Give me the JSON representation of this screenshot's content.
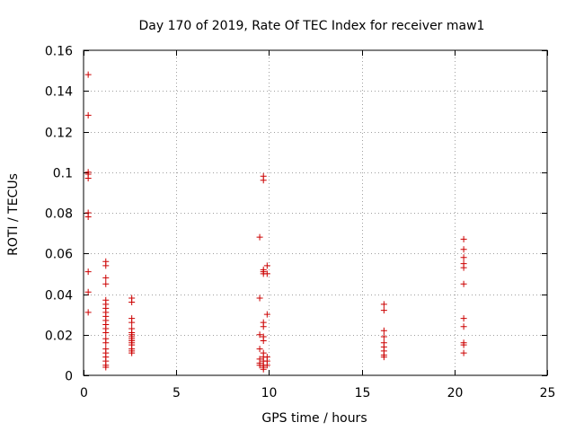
{
  "chart_data": {
    "type": "scatter",
    "title": "Day 170 of 2019, Rate Of TEC Index for receiver maw1",
    "xlabel": "GPS time / hours",
    "ylabel": "ROTI / TECUs",
    "xlim": [
      0,
      25
    ],
    "ylim": [
      0,
      0.16
    ],
    "grid": true,
    "x_ticks": [
      0,
      5,
      10,
      15,
      20,
      25
    ],
    "x_tick_labels": [
      "0",
      "5",
      "10",
      "15",
      "20",
      "25"
    ],
    "y_ticks": [
      0,
      0.02,
      0.04,
      0.06,
      0.08,
      0.1,
      0.12,
      0.14,
      0.16
    ],
    "y_tick_labels": [
      "0",
      "0.02",
      "0.04",
      "0.06",
      "0.08",
      "0.1",
      "0.12",
      "0.14",
      "0.16"
    ],
    "marker": "+",
    "color": "#cc0000",
    "series": [
      {
        "name": "maw1",
        "points": [
          [
            0.25,
            0.148
          ],
          [
            0.25,
            0.128
          ],
          [
            0.25,
            0.1
          ],
          [
            0.25,
            0.099
          ],
          [
            0.25,
            0.097
          ],
          [
            0.25,
            0.08
          ],
          [
            0.25,
            0.078
          ],
          [
            0.25,
            0.051
          ],
          [
            0.25,
            0.041
          ],
          [
            0.25,
            0.031
          ],
          [
            1.2,
            0.056
          ],
          [
            1.2,
            0.054
          ],
          [
            1.2,
            0.048
          ],
          [
            1.2,
            0.045
          ],
          [
            1.2,
            0.037
          ],
          [
            1.2,
            0.035
          ],
          [
            1.2,
            0.033
          ],
          [
            1.2,
            0.031
          ],
          [
            1.2,
            0.029
          ],
          [
            1.2,
            0.027
          ],
          [
            1.2,
            0.025
          ],
          [
            1.2,
            0.023
          ],
          [
            1.2,
            0.021
          ],
          [
            1.2,
            0.018
          ],
          [
            1.2,
            0.016
          ],
          [
            1.2,
            0.013
          ],
          [
            1.2,
            0.011
          ],
          [
            1.2,
            0.009
          ],
          [
            1.2,
            0.007
          ],
          [
            1.2,
            0.005
          ],
          [
            1.2,
            0.004
          ],
          [
            2.6,
            0.038
          ],
          [
            2.6,
            0.036
          ],
          [
            2.6,
            0.028
          ],
          [
            2.6,
            0.026
          ],
          [
            2.6,
            0.023
          ],
          [
            2.6,
            0.021
          ],
          [
            2.6,
            0.02
          ],
          [
            2.6,
            0.019
          ],
          [
            2.6,
            0.018
          ],
          [
            2.6,
            0.017
          ],
          [
            2.6,
            0.016
          ],
          [
            2.6,
            0.015
          ],
          [
            2.6,
            0.013
          ],
          [
            2.6,
            0.012
          ],
          [
            2.6,
            0.011
          ],
          [
            9.5,
            0.068
          ],
          [
            9.5,
            0.038
          ],
          [
            9.5,
            0.02
          ],
          [
            9.5,
            0.013
          ],
          [
            9.5,
            0.008
          ],
          [
            9.5,
            0.006
          ],
          [
            9.5,
            0.005
          ],
          [
            9.7,
            0.098
          ],
          [
            9.7,
            0.096
          ],
          [
            9.7,
            0.052
          ],
          [
            9.7,
            0.051
          ],
          [
            9.7,
            0.05
          ],
          [
            9.7,
            0.026
          ],
          [
            9.7,
            0.024
          ],
          [
            9.7,
            0.019
          ],
          [
            9.7,
            0.017
          ],
          [
            9.7,
            0.011
          ],
          [
            9.7,
            0.009
          ],
          [
            9.7,
            0.007
          ],
          [
            9.7,
            0.005
          ],
          [
            9.7,
            0.004
          ],
          [
            9.7,
            0.003
          ],
          [
            9.9,
            0.054
          ],
          [
            9.9,
            0.05
          ],
          [
            9.9,
            0.03
          ],
          [
            9.9,
            0.009
          ],
          [
            9.9,
            0.007
          ],
          [
            9.9,
            0.005
          ],
          [
            16.2,
            0.035
          ],
          [
            16.2,
            0.032
          ],
          [
            16.2,
            0.022
          ],
          [
            16.2,
            0.019
          ],
          [
            16.2,
            0.016
          ],
          [
            16.2,
            0.014
          ],
          [
            16.2,
            0.012
          ],
          [
            16.2,
            0.01
          ],
          [
            16.2,
            0.009
          ],
          [
            20.5,
            0.067
          ],
          [
            20.5,
            0.062
          ],
          [
            20.5,
            0.058
          ],
          [
            20.5,
            0.055
          ],
          [
            20.5,
            0.053
          ],
          [
            20.5,
            0.045
          ],
          [
            20.5,
            0.028
          ],
          [
            20.5,
            0.024
          ],
          [
            20.5,
            0.016
          ],
          [
            20.5,
            0.015
          ],
          [
            20.5,
            0.011
          ]
        ]
      }
    ]
  }
}
